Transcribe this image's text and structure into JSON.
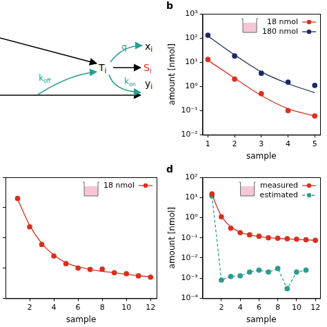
{
  "diagram": {
    "nodes": [
      {
        "text": "T",
        "sub": "i",
        "color": "#000000"
      },
      {
        "text": "x",
        "sub": "i",
        "color": "#000000"
      },
      {
        "text": "S",
        "sub": "i",
        "color": "#d7301f"
      },
      {
        "text": "y",
        "sub": "i",
        "color": "#000000"
      }
    ],
    "rates": [
      {
        "text": "q",
        "color": "#2a9d8f"
      },
      {
        "text": "k",
        "sub": "off",
        "color": "#2a9d8f"
      },
      {
        "text": "k",
        "sub": "on",
        "color": "#2a9d8f"
      }
    ]
  },
  "chart_data": [
    {
      "type": "scatter",
      "label": "b",
      "xlabel": "sample",
      "ylabel": "amount [nmol]",
      "x": [
        1,
        2,
        3,
        4,
        5
      ],
      "xlim": [
        0.8,
        5.2
      ],
      "xticks": [
        1,
        2,
        3,
        4,
        5
      ],
      "log": "y",
      "ylim": [
        0.01,
        1000
      ],
      "yticks": [
        {
          "value": 0.01,
          "label": "10⁻²"
        },
        {
          "value": 0.1,
          "label": "10⁻¹"
        },
        {
          "value": 1,
          "label": "10⁰"
        },
        {
          "value": 10,
          "label": "10¹"
        },
        {
          "value": 100,
          "label": "10²"
        },
        {
          "value": 1000,
          "label": "10³"
        }
      ],
      "grid": false,
      "legend": "upper right",
      "series": [
        {
          "name": "18 nmol",
          "color": "#d7301f",
          "marker": "circle",
          "line_style": "none",
          "values": [
            13,
            2.0,
            0.5,
            0.1,
            0.06
          ],
          "fit": [
            12,
            2.2,
            0.42,
            0.12,
            0.06
          ]
        },
        {
          "name": "180 nmol",
          "color": "#1b2a63",
          "marker": "circle",
          "line_style": "none",
          "values": [
            130,
            18,
            3.5,
            1.5,
            1.1
          ],
          "fit": [
            120,
            20,
            4,
            1.3,
            0.55
          ]
        }
      ]
    },
    {
      "type": "scatter",
      "xlabel": "sample",
      "x": [
        1,
        2,
        3,
        4,
        5,
        6,
        7,
        8,
        9,
        10,
        11,
        12
      ],
      "xlim": [
        0,
        12.5
      ],
      "xticks": [
        2,
        4,
        6,
        8,
        10,
        12
      ],
      "log": "y",
      "ylim": [
        0.01,
        100
      ],
      "yticks": [
        0.01,
        0.1,
        1,
        10,
        100
      ],
      "tick_labels": "x",
      "grid": false,
      "legend": "upper right",
      "series": [
        {
          "name": "18 nmol",
          "color": "#d7301f",
          "marker": "circle",
          "line_style": "none",
          "values": [
            20,
            2.3,
            0.6,
            0.25,
            0.14,
            0.1,
            0.09,
            0.092,
            0.07,
            0.065,
            0.055,
            0.05
          ],
          "fit": [
            19,
            2.6,
            0.65,
            0.27,
            0.15,
            0.11,
            0.09,
            0.078,
            0.07,
            0.062,
            0.056,
            0.051
          ]
        }
      ]
    },
    {
      "type": "scatter",
      "label": "d",
      "xlabel": "sample",
      "ylabel": "amount [nmol]",
      "x": [
        1,
        2,
        3,
        4,
        5,
        6,
        7,
        8,
        9,
        10,
        11,
        12
      ],
      "xlim": [
        0,
        12.5
      ],
      "xticks": [
        2,
        4,
        6,
        8,
        10,
        12
      ],
      "log": "y",
      "ylim": [
        0.0001,
        100
      ],
      "yticks": [
        {
          "value": 0.0001,
          "label": "10⁻⁴"
        },
        {
          "value": 0.001,
          "label": "10⁻³"
        },
        {
          "value": 0.01,
          "label": "10⁻²"
        },
        {
          "value": 0.1,
          "label": "10⁻¹"
        },
        {
          "value": 1,
          "label": "10⁰"
        },
        {
          "value": 10,
          "label": "10¹"
        },
        {
          "value": 100,
          "label": "10²"
        }
      ],
      "grid": false,
      "legend": "upper right",
      "series": [
        {
          "name": "measured",
          "color": "#d7301f",
          "marker": "circle",
          "line_style": "none",
          "values": [
            15,
            1.1,
            0.3,
            0.18,
            0.14,
            0.12,
            0.1,
            0.095,
            0.09,
            0.085,
            0.08,
            0.075
          ],
          "fit": [
            14,
            1.2,
            0.35,
            0.19,
            0.14,
            0.115,
            0.1,
            0.093,
            0.088,
            0.083,
            0.079,
            0.075
          ]
        },
        {
          "name": "estimated",
          "color": "#2a9d8f",
          "marker": "circle",
          "line_style": "dashed",
          "values": [
            12,
            0.0008,
            0.0012,
            0.0013,
            0.002,
            0.0025,
            0.002,
            0.003,
            0.0003,
            0.002,
            0.0025,
            null
          ]
        }
      ]
    }
  ]
}
